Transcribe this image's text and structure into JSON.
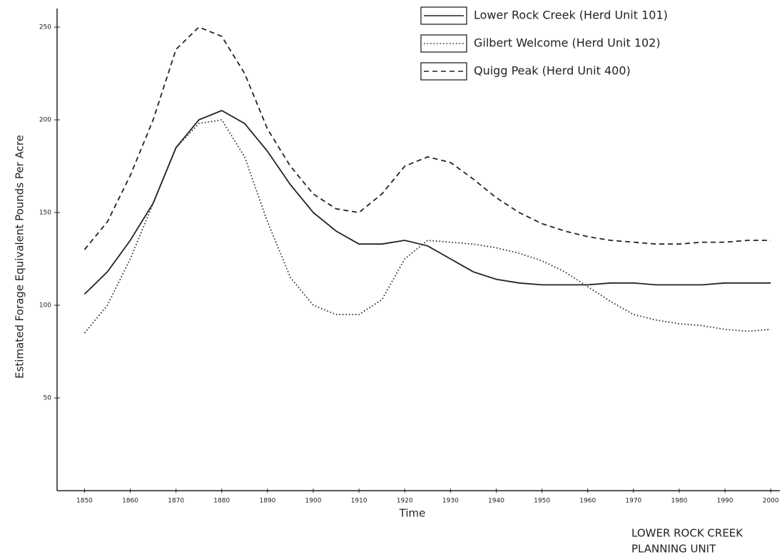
{
  "chart_data": {
    "type": "line",
    "y_label": "Estimated Forage Equivalent Pounds Per Acre",
    "x_label": "Time",
    "annotations": [
      "LOWER ROCK CREEK",
      "PLANNING UNIT"
    ],
    "x": [
      1850,
      1855,
      1860,
      1865,
      1870,
      1875,
      1880,
      1885,
      1890,
      1895,
      1900,
      1905,
      1910,
      1915,
      1920,
      1925,
      1930,
      1935,
      1940,
      1945,
      1950,
      1955,
      1960,
      1965,
      1970,
      1975,
      1980,
      1985,
      1990,
      1995,
      2000
    ],
    "series": [
      {
        "name": "Lower Rock Creek (Herd Unit 101)",
        "color": "#222222",
        "style": "solid",
        "values": [
          106,
          118,
          135,
          155,
          185,
          200,
          205,
          198,
          183,
          165,
          150,
          140,
          133,
          133,
          135,
          132,
          125,
          118,
          114,
          112,
          111,
          111,
          111,
          112,
          112,
          111,
          111,
          111,
          112,
          112,
          112
        ]
      },
      {
        "name": "Gilbert Welcome (Herd Unit 102)",
        "color": "#222222",
        "style": "dotted",
        "values": [
          85,
          100,
          125,
          155,
          185,
          198,
          200,
          180,
          145,
          115,
          100,
          95,
          95,
          103,
          125,
          135,
          134,
          133,
          131,
          128,
          124,
          118,
          110,
          102,
          95,
          92,
          90,
          89,
          87,
          86,
          87
        ]
      },
      {
        "name": "Quigg Peak (Herd Unit 400)",
        "color": "#222222",
        "style": "dashed",
        "values": [
          130,
          145,
          170,
          200,
          238,
          250,
          245,
          225,
          195,
          175,
          160,
          152,
          150,
          160,
          175,
          180,
          177,
          168,
          158,
          150,
          144,
          140,
          137,
          135,
          134,
          133,
          133,
          134,
          134,
          135,
          135
        ]
      }
    ],
    "xlim": [
      1844,
      2002
    ],
    "ylim": [
      0,
      260
    ],
    "xticks": [
      1850,
      1860,
      1870,
      1880,
      1890,
      1900,
      1910,
      1920,
      1930,
      1940,
      1950,
      1960,
      1970,
      1980,
      1990,
      2000
    ],
    "yticks": [
      50,
      100,
      150,
      200,
      250
    ],
    "legend": "top-right"
  }
}
